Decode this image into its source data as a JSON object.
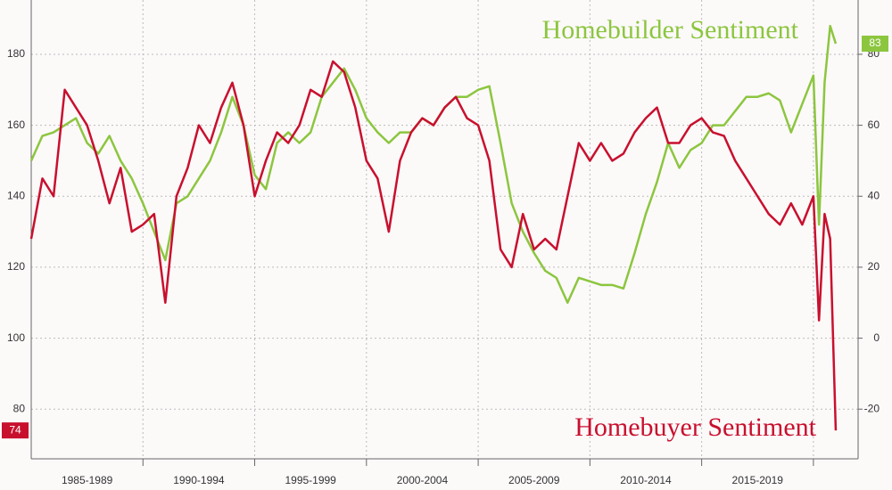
{
  "chart_data": {
    "type": "line",
    "x": [
      1985,
      1985.5,
      1986,
      1986.5,
      1987,
      1987.5,
      1988,
      1988.5,
      1989,
      1989.5,
      1990,
      1990.5,
      1991,
      1991.5,
      1992,
      1992.5,
      1993,
      1993.5,
      1994,
      1994.5,
      1995,
      1995.5,
      1996,
      1996.5,
      1997,
      1997.5,
      1998,
      1998.5,
      1999,
      1999.5,
      2000,
      2000.5,
      2001,
      2001.5,
      2002,
      2002.5,
      2003,
      2003.5,
      2004,
      2004.5,
      2005,
      2005.5,
      2006,
      2006.5,
      2007,
      2007.5,
      2008,
      2008.5,
      2009,
      2009.5,
      2010,
      2010.5,
      2011,
      2011.5,
      2012,
      2012.5,
      2013,
      2013.5,
      2014,
      2014.5,
      2015,
      2015.5,
      2016,
      2016.5,
      2017,
      2017.5,
      2018,
      2018.5,
      2019,
      2019.5,
      2020,
      2020.25,
      2020.5,
      2020.75,
      2021
    ],
    "series": [
      {
        "name": "Homebuilder Sentiment",
        "color": "#8cc63f",
        "axis": "y2",
        "values": [
          50,
          57,
          58,
          60,
          62,
          55,
          52,
          57,
          50,
          45,
          38,
          30,
          22,
          38,
          40,
          45,
          50,
          58,
          68,
          60,
          46,
          42,
          55,
          58,
          55,
          58,
          68,
          72,
          76,
          70,
          62,
          58,
          55,
          58,
          58,
          62,
          60,
          65,
          68,
          68,
          70,
          71,
          55,
          38,
          30,
          24,
          19,
          17,
          10,
          17,
          16,
          15,
          15,
          14,
          24,
          35,
          44,
          55,
          48,
          53,
          55,
          60,
          60,
          64,
          68,
          68,
          69,
          67,
          58,
          66,
          74,
          32,
          72,
          88,
          83
        ]
      },
      {
        "name": "Homebuyer Sentiment",
        "color": "#c8102e",
        "values": [
          128,
          145,
          140,
          170,
          165,
          160,
          150,
          138,
          148,
          130,
          132,
          135,
          110,
          140,
          148,
          160,
          155,
          165,
          172,
          160,
          140,
          150,
          158,
          155,
          160,
          170,
          168,
          178,
          175,
          165,
          150,
          145,
          130,
          150,
          158,
          162,
          160,
          165,
          168,
          162,
          160,
          150,
          125,
          120,
          135,
          125,
          128,
          125,
          140,
          155,
          150,
          155,
          150,
          152,
          158,
          162,
          165,
          155,
          155,
          160,
          162,
          158,
          157,
          150,
          145,
          140,
          135,
          132,
          138,
          132,
          140,
          105,
          135,
          128,
          74
        ]
      }
    ],
    "xlim": [
      1985,
      2022
    ],
    "xticks": [
      {
        "value": 1987.5,
        "label": "1985-1989"
      },
      {
        "value": 1992.5,
        "label": "1990-1994"
      },
      {
        "value": 1997.5,
        "label": "1995-1999"
      },
      {
        "value": 2002.5,
        "label": "2000-2004"
      },
      {
        "value": 2007.5,
        "label": "2005-2009"
      },
      {
        "value": 2012.5,
        "label": "2010-2014"
      },
      {
        "value": 2017.5,
        "label": "2015-2019"
      }
    ],
    "ylim": [
      66,
      195.3
    ],
    "yticks": [
      80,
      100,
      120,
      140,
      160,
      180
    ],
    "y2lim": [
      -34,
      95.3
    ],
    "y2ticks": [
      -20,
      0,
      20,
      40,
      60,
      80
    ],
    "grid": true
  }
}
